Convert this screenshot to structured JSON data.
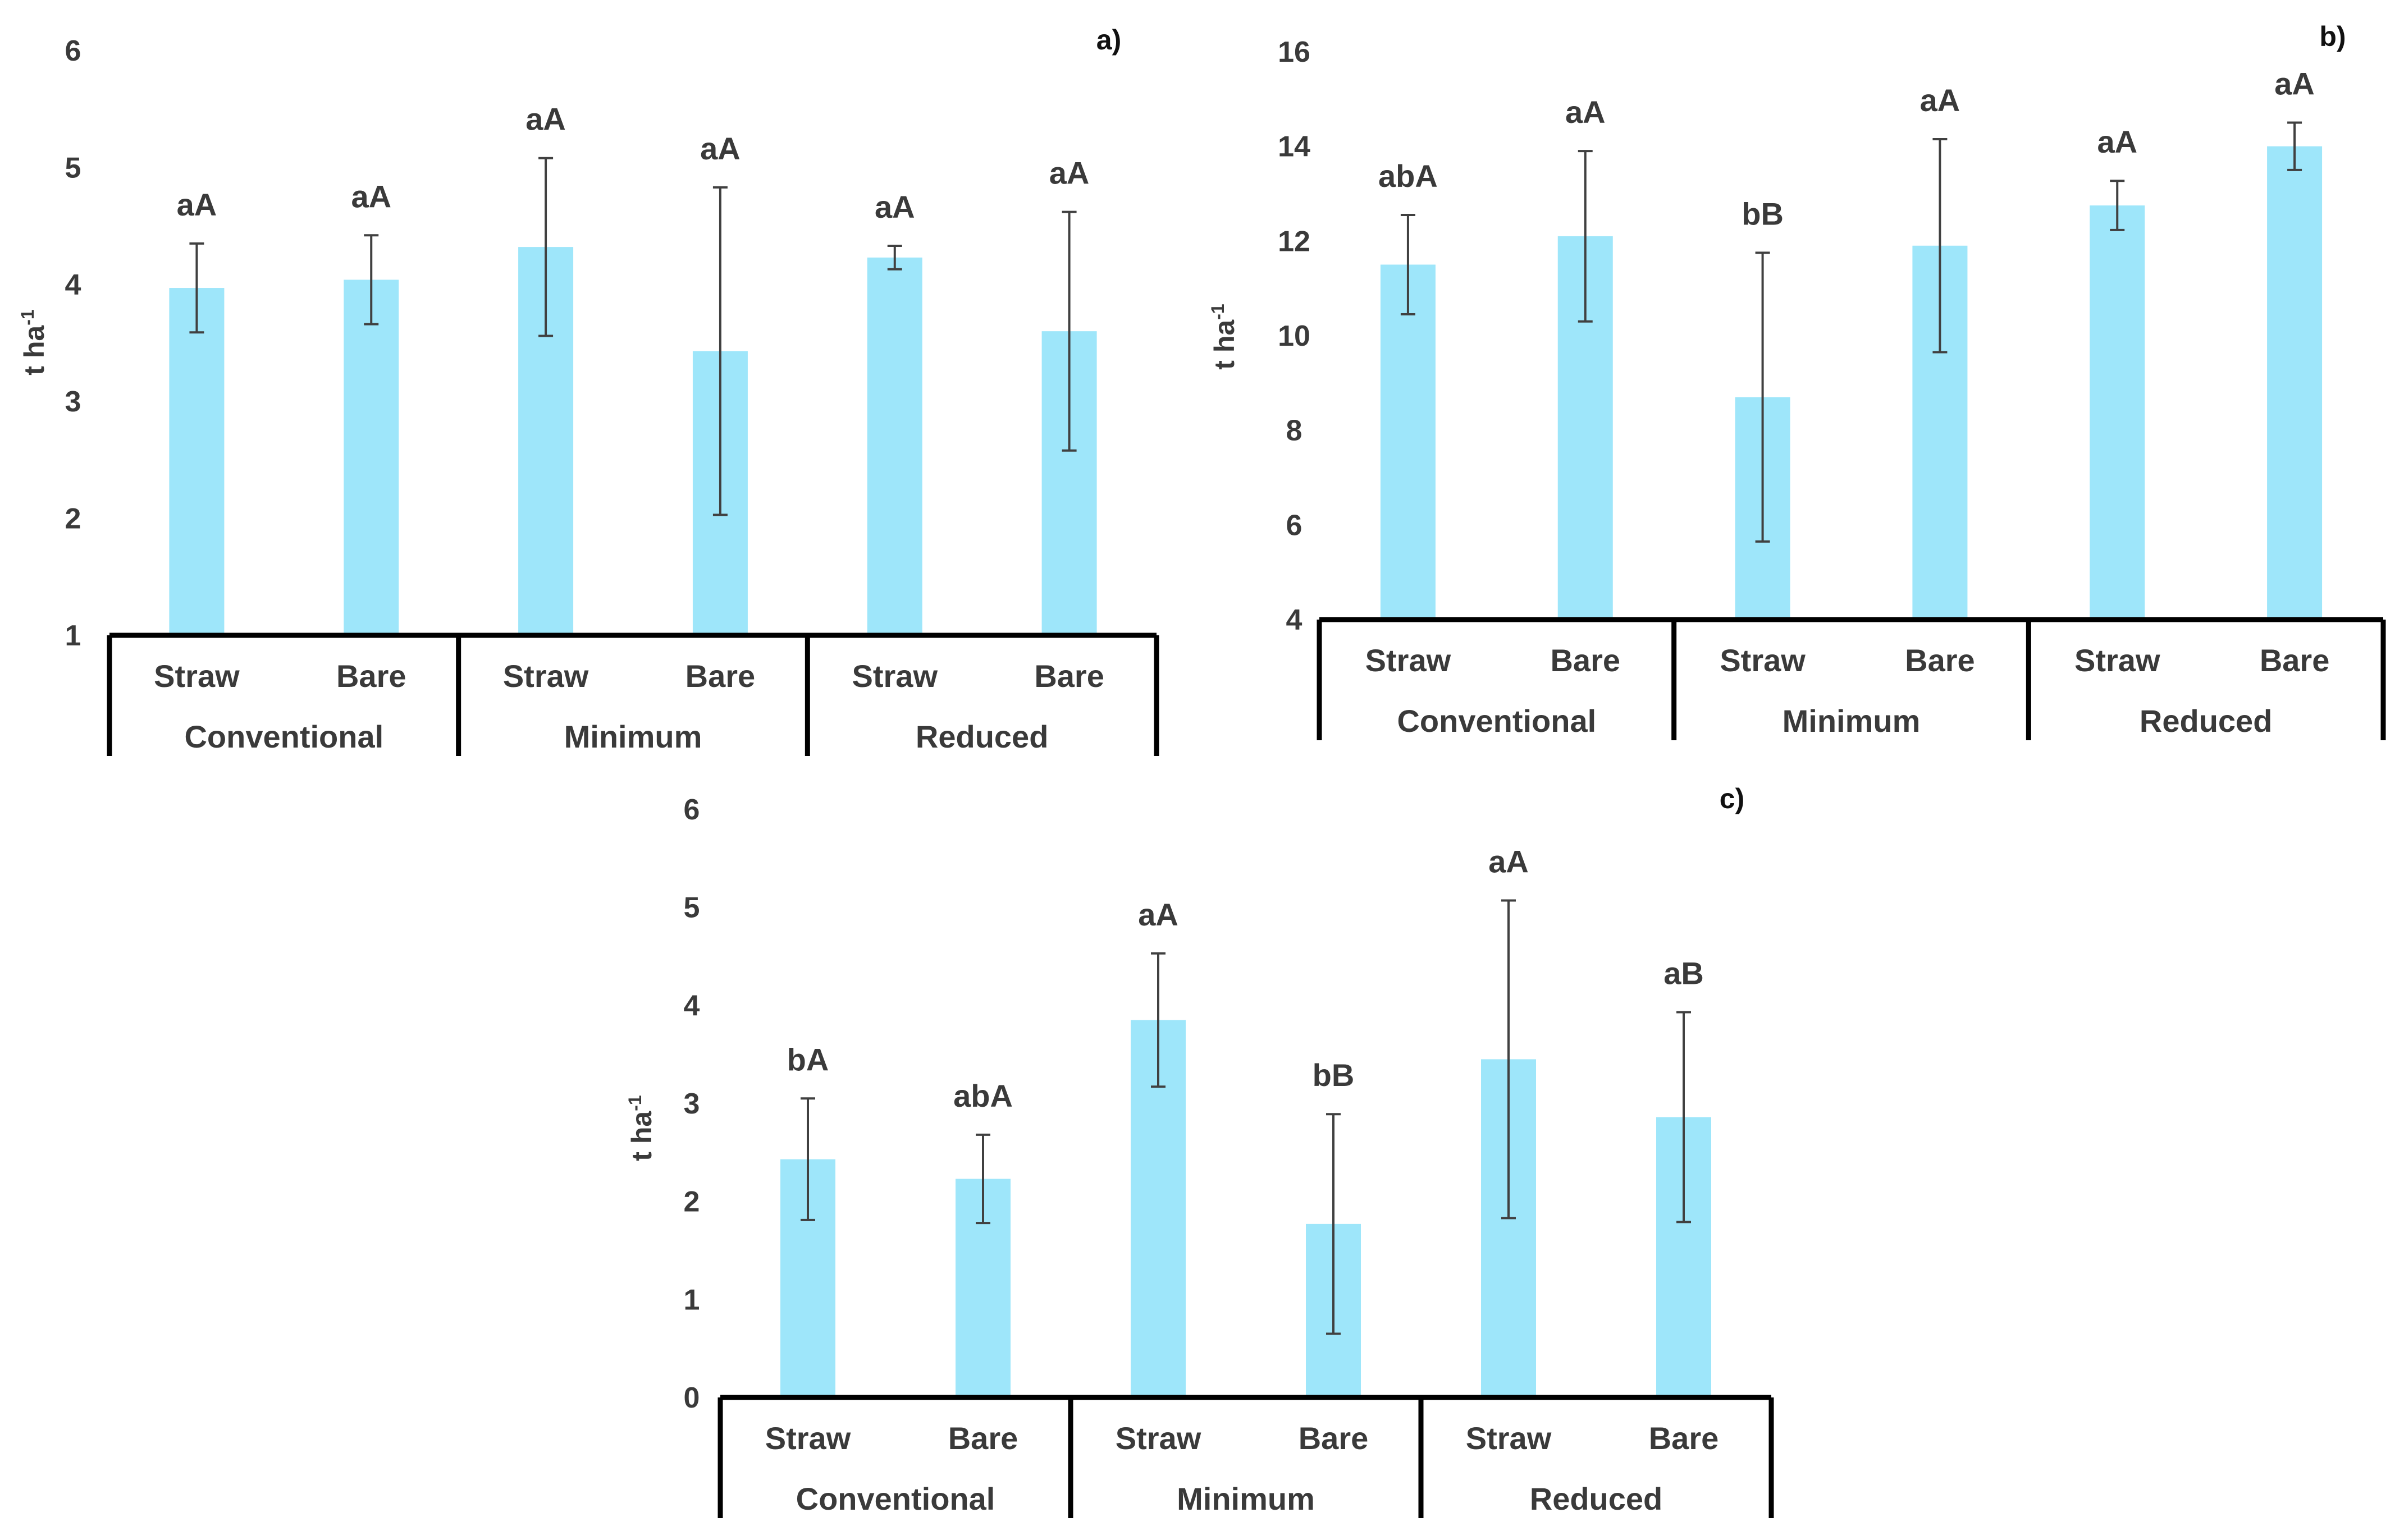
{
  "colors": {
    "bar": "#9ee6fa",
    "axis": "#000000",
    "error": "#404040",
    "text": "#3a3a3a"
  },
  "chart_data": [
    {
      "type": "bar",
      "panel": "a)",
      "ylabel": "t ha",
      "ylabel_sup": "-1",
      "ylim": [
        1,
        6
      ],
      "yticks": [
        "1",
        "2",
        "3",
        "4",
        "5",
        "6"
      ],
      "groups": [
        "Conventional",
        "Minimum",
        "Reduced"
      ],
      "categories": [
        "Straw",
        "Bare",
        "Straw",
        "Bare",
        "Straw",
        "Bare"
      ],
      "values": [
        3.97,
        4.04,
        4.32,
        3.43,
        4.23,
        3.6
      ],
      "errors": [
        0.38,
        0.38,
        0.76,
        1.4,
        0.1,
        1.02
      ],
      "labels": [
        "aA",
        "aA",
        "aA",
        "aA",
        "aA",
        "aA"
      ]
    },
    {
      "type": "bar",
      "panel": "b)",
      "ylabel": "t ha",
      "ylabel_sup": "-1",
      "ylim": [
        4,
        16
      ],
      "yticks": [
        "4",
        "6",
        "8",
        "10",
        "12",
        "14",
        "16"
      ],
      "groups": [
        "Conventional",
        "Minimum",
        "Reduced"
      ],
      "categories": [
        "Straw",
        "Bare",
        "Straw",
        "Bare",
        "Straw",
        "Bare"
      ],
      "values": [
        11.5,
        12.1,
        8.7,
        11.9,
        12.75,
        14.0
      ],
      "errors": [
        1.05,
        1.8,
        3.05,
        2.25,
        0.52,
        0.5
      ],
      "labels": [
        "abA",
        "aA",
        "bB",
        "aA",
        "aA",
        "aA"
      ]
    },
    {
      "type": "bar",
      "panel": "c)",
      "ylabel": "t ha",
      "ylabel_sup": "-1",
      "ylim": [
        0,
        6
      ],
      "yticks": [
        "0",
        "1",
        "2",
        "3",
        "4",
        "5",
        "6"
      ],
      "groups": [
        "Conventional",
        "Minimum",
        "Reduced"
      ],
      "categories": [
        "Straw",
        "Bare",
        "Straw",
        "Bare",
        "Straw",
        "Bare"
      ],
      "values": [
        2.43,
        2.23,
        3.85,
        1.77,
        3.45,
        2.86
      ],
      "errors": [
        0.62,
        0.45,
        0.68,
        1.12,
        1.62,
        1.07
      ],
      "labels": [
        "bA",
        "abA",
        "aA",
        "bB",
        "aA",
        "aB"
      ]
    }
  ]
}
